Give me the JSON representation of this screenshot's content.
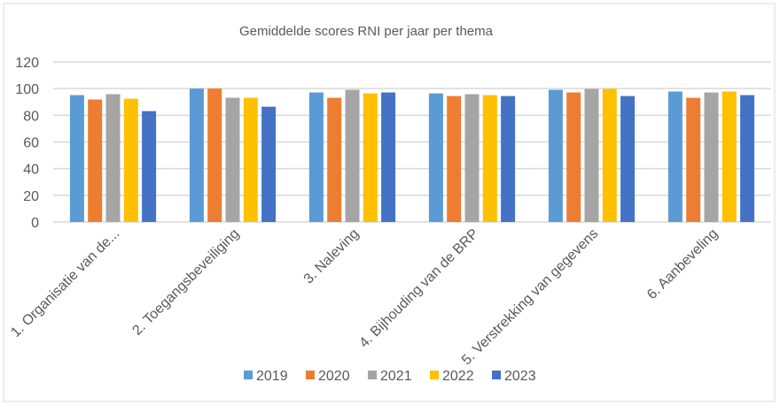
{
  "chart_data": {
    "type": "bar",
    "title": "Gemiddelde scores RNI per jaar per thema",
    "xlabel": "",
    "ylabel": "",
    "ylim": [
      0,
      120
    ],
    "yticks": [
      0,
      20,
      40,
      60,
      80,
      100,
      120
    ],
    "grid": true,
    "legend_position": "bottom",
    "categories": [
      "1. Organisatie van de...",
      "2. Toegangsbeveiliging",
      "3. Naleving",
      "4. Bijhouding van de BRP",
      "5. Verstrekking van gegevens",
      "6. Aanbeveling"
    ],
    "series": [
      {
        "name": "2019",
        "color": "#5B9BD5",
        "values": [
          95.1,
          100,
          97.1,
          96.4,
          99.1,
          97.8
        ]
      },
      {
        "name": "2020",
        "color": "#ED7D31",
        "values": [
          91.8,
          100,
          93.1,
          94.4,
          97.1,
          93.1
        ]
      },
      {
        "name": "2021",
        "color": "#A5A5A5",
        "values": [
          95.8,
          93.1,
          99.1,
          95.8,
          99.8,
          97.1
        ]
      },
      {
        "name": "2022",
        "color": "#FFC000",
        "values": [
          92.4,
          93.1,
          96.4,
          95.1,
          99.8,
          97.8
        ]
      },
      {
        "name": "2023",
        "color": "#4472C4",
        "values": [
          83.1,
          86.4,
          97.1,
          94.4,
          94.4,
          95.1
        ]
      }
    ]
  }
}
